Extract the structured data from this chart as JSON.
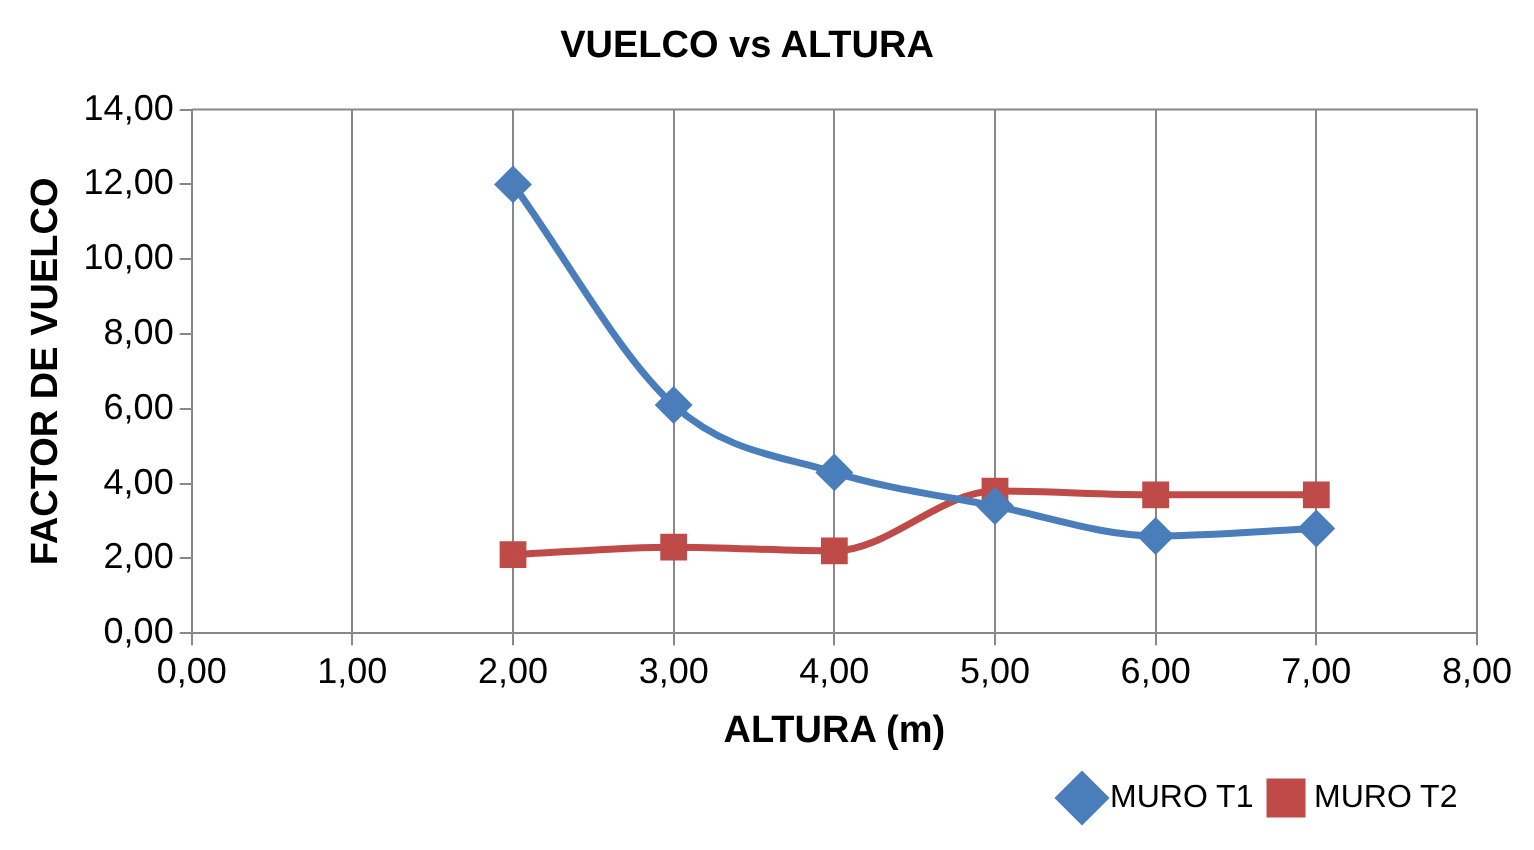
{
  "chart_data": {
    "type": "line",
    "title": "VUELCO vs ALTURA",
    "xlabel": "ALTURA (m)",
    "ylabel": "FACTOR DE VUELCO",
    "x": [
      2,
      3,
      4,
      5,
      6,
      7
    ],
    "series": [
      {
        "name": "MURO T1",
        "color": "#4a7ebb",
        "marker": "diamond",
        "values": [
          12.0,
          6.1,
          4.3,
          3.4,
          2.6,
          2.8
        ]
      },
      {
        "name": "MURO T2",
        "color": "#be4b48",
        "marker": "square",
        "values": [
          2.1,
          2.3,
          2.2,
          3.8,
          3.7,
          3.7
        ]
      }
    ],
    "xlim": [
      0,
      8
    ],
    "xticks": [
      {
        "value": 0,
        "label": "0,00"
      },
      {
        "value": 1,
        "label": "1,00"
      },
      {
        "value": 2,
        "label": "2,00"
      },
      {
        "value": 3,
        "label": "3,00"
      },
      {
        "value": 4,
        "label": "4,00"
      },
      {
        "value": 5,
        "label": "5,00"
      },
      {
        "value": 6,
        "label": "6,00"
      },
      {
        "value": 7,
        "label": "7,00"
      },
      {
        "value": 8,
        "label": "8,00"
      }
    ],
    "ylim": [
      0,
      14
    ],
    "yticks": [
      {
        "value": 0,
        "label": "0,00"
      },
      {
        "value": 2,
        "label": "2,00"
      },
      {
        "value": 4,
        "label": "4,00"
      },
      {
        "value": 6,
        "label": "6,00"
      },
      {
        "value": 8,
        "label": "8,00"
      },
      {
        "value": 10,
        "label": "10,00"
      },
      {
        "value": 12,
        "label": "12,00"
      },
      {
        "value": 14,
        "label": "14,00"
      }
    ],
    "grid": "x",
    "legend": "bottom right"
  }
}
